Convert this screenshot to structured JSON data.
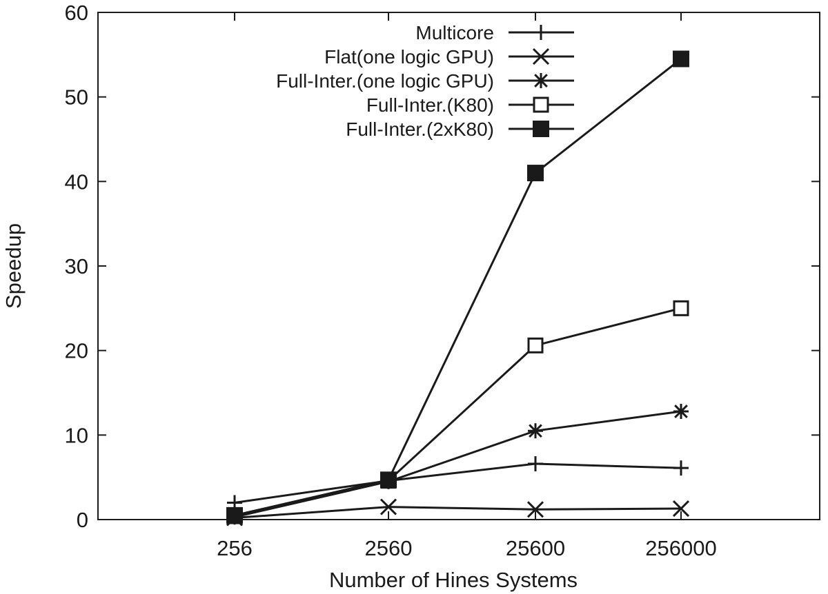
{
  "chart_data": {
    "type": "line",
    "title": "",
    "xlabel": "Number of Hines Systems",
    "ylabel": "Speedup",
    "categories": [
      "256",
      "2560",
      "25600",
      "256000"
    ],
    "ylim": [
      0,
      60
    ],
    "yticks": [
      0,
      10,
      20,
      30,
      40,
      50,
      60
    ],
    "grid": false,
    "legend_position": "top-right",
    "series": [
      {
        "name": "Multicore",
        "marker": "plus",
        "values": [
          2.0,
          4.6,
          6.6,
          6.1
        ]
      },
      {
        "name": "Flat(one logic GPU)",
        "marker": "cross",
        "values": [
          0.2,
          1.5,
          1.2,
          1.3
        ]
      },
      {
        "name": "Full-Inter.(one logic GPU)",
        "marker": "asterisk",
        "values": [
          0.3,
          4.5,
          10.5,
          12.8
        ]
      },
      {
        "name": "Full-Inter.(K80)",
        "marker": "open-square",
        "values": [
          0.4,
          4.6,
          20.6,
          25.0
        ]
      },
      {
        "name": "Full-Inter.(2xK80)",
        "marker": "filled-square",
        "values": [
          0.5,
          4.7,
          41.0,
          54.5
        ]
      }
    ]
  }
}
